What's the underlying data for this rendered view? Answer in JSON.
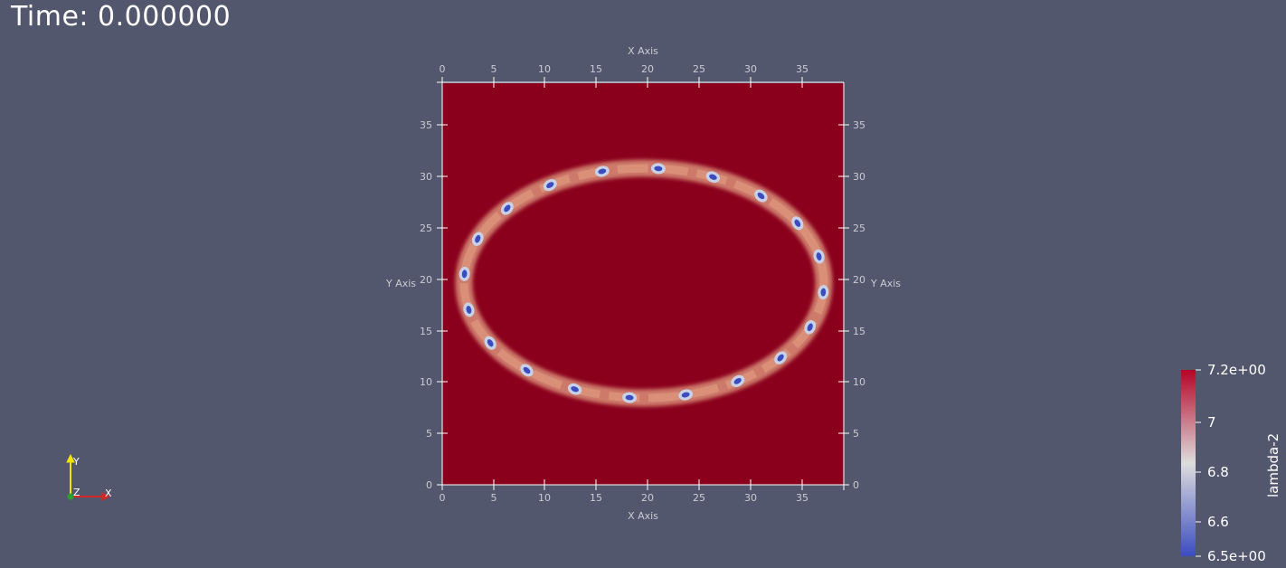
{
  "time_label": "Time: 0.000000",
  "axes": {
    "x_title": "X Axis",
    "y_title": "Y Axis",
    "x_ticks": [
      "0",
      "5",
      "10",
      "15",
      "20",
      "25",
      "30",
      "35"
    ],
    "y_ticks": [
      "0",
      "5",
      "10",
      "15",
      "20",
      "25",
      "30",
      "35"
    ]
  },
  "field": {
    "background_color": "#8a001c",
    "ring_color": "#d98f78",
    "low_color": "#3b4cc0"
  },
  "colorbar": {
    "title": "lambda-2",
    "labels": [
      "7.2e+00",
      "7",
      "6.8",
      "6.6",
      "6.5e+00"
    ],
    "high_color": "#b40426",
    "mid_color": "#dddddd",
    "low_color": "#3b4cc0"
  },
  "orientation_axes": {
    "x_label": "X",
    "y_label": "Y",
    "z_label": "Z",
    "x_color": "#d62728",
    "y_color": "#f2e600",
    "z_color": "#2ca02c"
  }
}
